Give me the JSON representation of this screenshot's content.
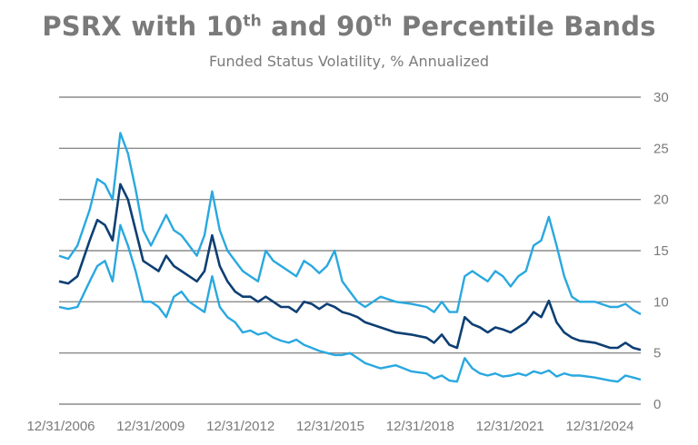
{
  "chart_data": {
    "type": "line",
    "title_parts": [
      "PSRX with 10",
      "th",
      " and 90",
      "th",
      " Percentile Bands"
    ],
    "subtitle": "Funded Status Volatility, % Annualized",
    "xlabel": "",
    "ylabel": "",
    "ylim": [
      0,
      30
    ],
    "y_ticks": [
      0,
      5,
      10,
      15,
      20,
      25,
      30
    ],
    "x_ticks": [
      "12/31/2006",
      "12/31/2009",
      "12/31/2012",
      "12/31/2015",
      "12/31/2018",
      "12/31/2021",
      "12/31/2024"
    ],
    "x_range": [
      2006.0,
      2025.0
    ],
    "grid": "horizontal",
    "legend": "none",
    "series": [
      {
        "role": "90th",
        "color": "#29a8e0",
        "x": [
          2006.0,
          2006.3,
          2006.6,
          2007.0,
          2007.25,
          2007.5,
          2007.75,
          2008.0,
          2008.25,
          2008.5,
          2008.75,
          2009.0,
          2009.25,
          2009.5,
          2009.75,
          2010.0,
          2010.25,
          2010.5,
          2010.75,
          2011.0,
          2011.25,
          2011.5,
          2011.75,
          2012.0,
          2012.25,
          2012.5,
          2012.75,
          2013.0,
          2013.25,
          2013.5,
          2013.75,
          2014.0,
          2014.25,
          2014.5,
          2014.75,
          2015.0,
          2015.25,
          2015.5,
          2015.75,
          2016.0,
          2016.5,
          2017.0,
          2017.5,
          2018.0,
          2018.25,
          2018.5,
          2018.75,
          2019.0,
          2019.25,
          2019.5,
          2019.75,
          2020.0,
          2020.25,
          2020.5,
          2020.75,
          2021.0,
          2021.25,
          2021.5,
          2021.75,
          2022.0,
          2022.25,
          2022.5,
          2022.75,
          2023.0,
          2023.5,
          2024.0,
          2024.25,
          2024.5,
          2024.75,
          2025.0
        ],
        "y": [
          14.5,
          14.2,
          15.5,
          19.0,
          22.0,
          21.5,
          20.0,
          26.5,
          24.5,
          21.0,
          17.0,
          15.5,
          17.0,
          18.5,
          17.0,
          16.5,
          15.5,
          14.5,
          16.5,
          20.8,
          17.0,
          15.0,
          14.0,
          13.0,
          12.5,
          12.0,
          15.0,
          14.0,
          13.5,
          13.0,
          12.5,
          14.0,
          13.5,
          12.8,
          13.5,
          15.0,
          12.0,
          11.0,
          10.0,
          9.5,
          10.5,
          10.0,
          9.8,
          9.5,
          9.0,
          10.0,
          9.0,
          9.0,
          12.5,
          13.0,
          12.5,
          12.0,
          13.0,
          12.5,
          11.5,
          12.5,
          13.0,
          15.5,
          16.0,
          18.3,
          15.5,
          12.5,
          10.5,
          10.0,
          10.0,
          9.5,
          9.5,
          9.8,
          9.2,
          8.8
        ]
      },
      {
        "role": "median",
        "color": "#0d3f73",
        "x": [
          2006.0,
          2006.3,
          2006.6,
          2007.0,
          2007.25,
          2007.5,
          2007.75,
          2008.0,
          2008.25,
          2008.5,
          2008.75,
          2009.0,
          2009.25,
          2009.5,
          2009.75,
          2010.0,
          2010.25,
          2010.5,
          2010.75,
          2011.0,
          2011.25,
          2011.5,
          2011.75,
          2012.0,
          2012.25,
          2012.5,
          2012.75,
          2013.0,
          2013.25,
          2013.5,
          2013.75,
          2014.0,
          2014.25,
          2014.5,
          2014.75,
          2015.0,
          2015.25,
          2015.5,
          2015.75,
          2016.0,
          2016.5,
          2017.0,
          2017.5,
          2018.0,
          2018.25,
          2018.5,
          2018.75,
          2019.0,
          2019.25,
          2019.5,
          2019.75,
          2020.0,
          2020.25,
          2020.5,
          2020.75,
          2021.0,
          2021.25,
          2021.5,
          2021.75,
          2022.0,
          2022.25,
          2022.5,
          2022.75,
          2023.0,
          2023.5,
          2024.0,
          2024.25,
          2024.5,
          2024.75,
          2025.0
        ],
        "y": [
          12.0,
          11.8,
          12.5,
          16.0,
          18.0,
          17.5,
          16.0,
          21.5,
          20.0,
          17.0,
          14.0,
          13.5,
          13.0,
          14.5,
          13.5,
          13.0,
          12.5,
          12.0,
          13.0,
          16.5,
          13.5,
          12.0,
          11.0,
          10.5,
          10.5,
          10.0,
          10.5,
          10.0,
          9.5,
          9.5,
          9.0,
          10.0,
          9.8,
          9.3,
          9.8,
          9.5,
          9.0,
          8.8,
          8.5,
          8.0,
          7.5,
          7.0,
          6.8,
          6.5,
          6.0,
          6.8,
          5.8,
          5.5,
          8.5,
          7.8,
          7.5,
          7.0,
          7.5,
          7.3,
          7.0,
          7.5,
          8.0,
          9.0,
          8.5,
          10.1,
          8.0,
          7.0,
          6.5,
          6.2,
          6.0,
          5.5,
          5.5,
          6.0,
          5.5,
          5.3
        ]
      },
      {
        "role": "10th",
        "color": "#29a8e0",
        "x": [
          2006.0,
          2006.3,
          2006.6,
          2007.0,
          2007.25,
          2007.5,
          2007.75,
          2008.0,
          2008.25,
          2008.5,
          2008.75,
          2009.0,
          2009.25,
          2009.5,
          2009.75,
          2010.0,
          2010.25,
          2010.5,
          2010.75,
          2011.0,
          2011.25,
          2011.5,
          2011.75,
          2012.0,
          2012.25,
          2012.5,
          2012.75,
          2013.0,
          2013.25,
          2013.5,
          2013.75,
          2014.0,
          2014.25,
          2014.5,
          2014.75,
          2015.0,
          2015.25,
          2015.5,
          2015.75,
          2016.0,
          2016.5,
          2017.0,
          2017.5,
          2018.0,
          2018.25,
          2018.5,
          2018.75,
          2019.0,
          2019.25,
          2019.5,
          2019.75,
          2020.0,
          2020.25,
          2020.5,
          2020.75,
          2021.0,
          2021.25,
          2021.5,
          2021.75,
          2022.0,
          2022.25,
          2022.5,
          2022.75,
          2023.0,
          2023.5,
          2024.0,
          2024.25,
          2024.5,
          2024.75,
          2025.0
        ],
        "y": [
          9.5,
          9.3,
          9.5,
          12.0,
          13.5,
          14.0,
          12.0,
          17.5,
          15.5,
          13.0,
          10.0,
          10.0,
          9.5,
          8.5,
          10.5,
          11.0,
          10.0,
          9.5,
          9.0,
          12.5,
          9.5,
          8.5,
          8.0,
          7.0,
          7.2,
          6.8,
          7.0,
          6.5,
          6.2,
          6.0,
          6.3,
          5.8,
          5.5,
          5.2,
          5.0,
          4.8,
          4.8,
          5.0,
          4.5,
          4.0,
          3.5,
          3.8,
          3.2,
          3.0,
          2.5,
          2.8,
          2.3,
          2.2,
          4.5,
          3.5,
          3.0,
          2.8,
          3.0,
          2.7,
          2.8,
          3.0,
          2.8,
          3.2,
          3.0,
          3.3,
          2.7,
          3.0,
          2.8,
          2.8,
          2.6,
          2.3,
          2.2,
          2.8,
          2.6,
          2.4
        ]
      }
    ]
  }
}
